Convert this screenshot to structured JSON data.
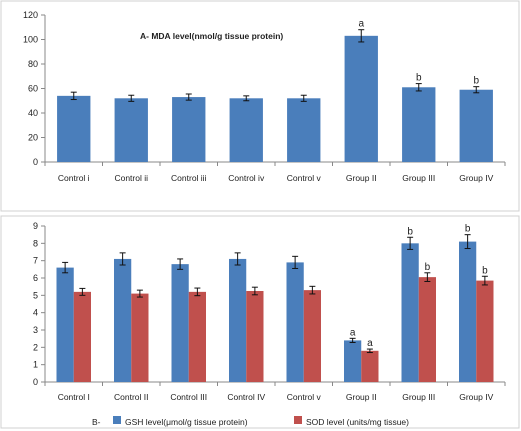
{
  "chart_data": [
    {
      "type": "bar",
      "title": "A- MDA level(nmol/g tissue protein)",
      "categories": [
        "Control i",
        "Control ii",
        "Control iii",
        "Control iv",
        "Control v",
        "Group II",
        "Group III",
        "Group IV"
      ],
      "series": [
        {
          "name": "",
          "color": "#4a7ebb",
          "values": [
            54,
            52,
            53,
            52,
            52,
            103,
            61,
            59
          ],
          "errors": [
            3,
            2.5,
            2.5,
            2,
            2.5,
            5,
            3,
            2.5
          ],
          "annotations": [
            "",
            "",
            "",
            "",
            "",
            "a",
            "b",
            "b"
          ]
        }
      ],
      "ylim": [
        0,
        120
      ],
      "yticks": [
        0,
        20,
        40,
        60,
        80,
        100,
        120
      ],
      "grid": false
    },
    {
      "type": "bar",
      "title": "",
      "categories": [
        "Control I",
        "Control II",
        "Control III",
        "Control IV",
        "Control v",
        "Group II",
        "Group III",
        "Group IV"
      ],
      "series": [
        {
          "name": "GSH level(μmol/g tissue protein)",
          "color": "#4a7ebb",
          "values": [
            6.6,
            7.1,
            6.8,
            7.1,
            6.9,
            2.4,
            8.0,
            8.1
          ],
          "errors": [
            0.3,
            0.35,
            0.3,
            0.35,
            0.35,
            0.12,
            0.35,
            0.4
          ],
          "annotations": [
            "",
            "",
            "",
            "",
            "",
            "a",
            "b",
            "b"
          ]
        },
        {
          "name": "SOD level (units/mg tissue)",
          "color": "#c0504d",
          "values": [
            5.2,
            5.1,
            5.2,
            5.25,
            5.3,
            1.8,
            6.05,
            5.85
          ],
          "errors": [
            0.2,
            0.2,
            0.22,
            0.22,
            0.22,
            0.1,
            0.25,
            0.25
          ],
          "annotations": [
            "",
            "",
            "",
            "",
            "",
            "a",
            "b",
            "b"
          ]
        }
      ],
      "ylim": [
        0,
        9
      ],
      "yticks": [
        0,
        1,
        2,
        3,
        4,
        5,
        6,
        7,
        8,
        9
      ],
      "legend_prefix": "B-",
      "legend_position": "bottom",
      "grid": false
    }
  ]
}
